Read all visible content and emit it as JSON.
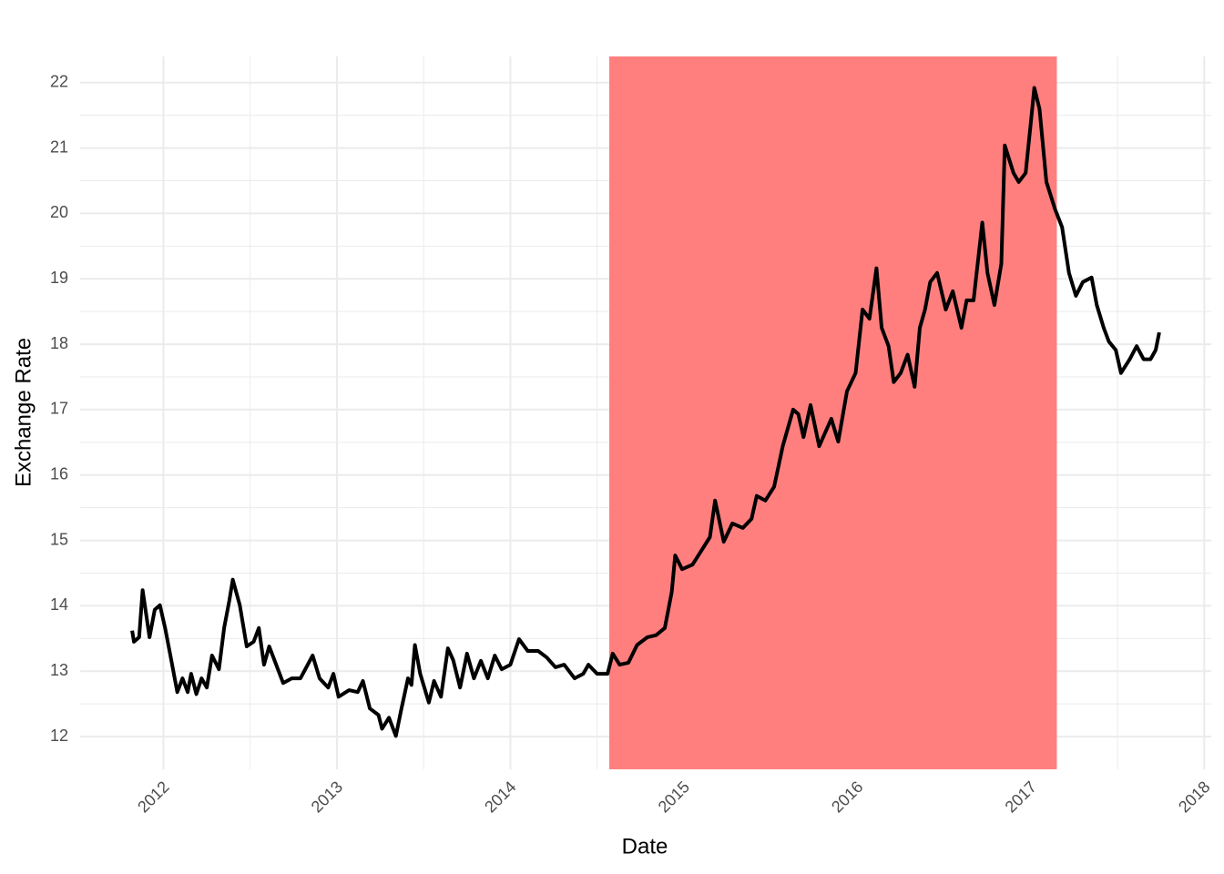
{
  "chart_data": {
    "type": "line",
    "x_label": "Date",
    "y_label": "Exchange Rate",
    "xlim": [
      2011.52,
      2018.04
    ],
    "ylim": [
      11.5,
      22.4
    ],
    "xticks": [
      2012,
      2013,
      2014,
      2015,
      2016,
      2017,
      2018
    ],
    "yticks": [
      12,
      13,
      14,
      15,
      16,
      17,
      18,
      19,
      20,
      21,
      22
    ],
    "grid": true,
    "minor_grid": true,
    "shaded_region": {
      "xmin": 2014.57,
      "xmax": 2017.15,
      "color": "#ff7f7f"
    },
    "series": [
      {
        "color": "#000000",
        "x": [
          2011.82,
          2011.83,
          2011.86,
          2011.88,
          2011.92,
          2011.95,
          2011.98,
          2012.01,
          2012.04,
          2012.06,
          2012.08,
          2012.11,
          2012.14,
          2012.16,
          2012.19,
          2012.22,
          2012.25,
          2012.28,
          2012.32,
          2012.35,
          2012.38,
          2012.4,
          2012.44,
          2012.48,
          2012.52,
          2012.55,
          2012.58,
          2012.61,
          2012.69,
          2012.74,
          2012.79,
          2012.86,
          2012.9,
          2012.95,
          2012.98,
          2013.01,
          2013.07,
          2013.12,
          2013.15,
          2013.19,
          2013.24,
          2013.26,
          2013.3,
          2013.34,
          2013.37,
          2013.41,
          2013.43,
          2013.45,
          2013.48,
          2013.53,
          2013.56,
          2013.6,
          2013.64,
          2013.67,
          2013.71,
          2013.75,
          2013.79,
          2013.83,
          2013.87,
          2013.91,
          2013.95,
          2014.0,
          2014.05,
          2014.1,
          2014.16,
          2014.21,
          2014.26,
          2014.31,
          2014.37,
          2014.42,
          2014.45,
          2014.5,
          2014.56,
          2014.59,
          2014.63,
          2014.68,
          2014.73,
          2014.79,
          2014.84,
          2014.89,
          2014.93,
          2014.95,
          2014.99,
          2015.05,
          2015.1,
          2015.15,
          2015.18,
          2015.23,
          2015.28,
          2015.34,
          2015.39,
          2015.42,
          2015.47,
          2015.52,
          2015.57,
          2015.63,
          2015.66,
          2015.69,
          2015.73,
          2015.78,
          2015.85,
          2015.89,
          2015.94,
          2015.99,
          2016.03,
          2016.07,
          2016.11,
          2016.14,
          2016.18,
          2016.21,
          2016.25,
          2016.29,
          2016.33,
          2016.36,
          2016.39,
          2016.42,
          2016.46,
          2016.51,
          2016.55,
          2016.6,
          2016.63,
          2016.67,
          2016.72,
          2016.75,
          2016.79,
          2016.83,
          2016.85,
          2016.9,
          2016.93,
          2016.97,
          2017.0,
          2017.02,
          2017.05,
          2017.09,
          2017.14,
          2017.18,
          2017.22,
          2017.26,
          2017.3,
          2017.35,
          2017.38,
          2017.42,
          2017.45,
          2017.49,
          2017.52,
          2017.57,
          2017.61,
          2017.65,
          2017.69,
          2017.72,
          2017.74
        ],
        "values": [
          13.62,
          13.45,
          13.52,
          14.24,
          13.52,
          13.94,
          14.01,
          13.66,
          13.24,
          12.96,
          12.68,
          12.89,
          12.68,
          12.96,
          12.65,
          12.89,
          12.75,
          13.24,
          13.03,
          13.66,
          14.08,
          14.4,
          14.01,
          13.38,
          13.45,
          13.66,
          13.1,
          13.38,
          12.82,
          12.89,
          12.89,
          13.24,
          12.89,
          12.75,
          12.96,
          12.61,
          12.71,
          12.68,
          12.85,
          12.43,
          12.33,
          12.12,
          12.29,
          12.01,
          12.4,
          12.89,
          12.79,
          13.4,
          12.96,
          12.52,
          12.85,
          12.61,
          13.35,
          13.17,
          12.75,
          13.27,
          12.89,
          13.16,
          12.89,
          13.24,
          13.03,
          13.1,
          13.49,
          13.31,
          13.31,
          13.21,
          13.06,
          13.1,
          12.89,
          12.96,
          13.1,
          12.96,
          12.96,
          13.27,
          13.1,
          13.13,
          13.4,
          13.52,
          13.55,
          13.66,
          14.21,
          14.77,
          14.56,
          14.63,
          14.84,
          15.05,
          15.61,
          14.98,
          15.26,
          15.19,
          15.33,
          15.68,
          15.61,
          15.82,
          16.44,
          17.0,
          16.93,
          16.58,
          17.07,
          16.44,
          16.86,
          16.51,
          17.28,
          17.56,
          18.53,
          18.39,
          19.16,
          18.25,
          17.97,
          17.42,
          17.56,
          17.84,
          17.35,
          18.25,
          18.53,
          18.95,
          19.09,
          18.53,
          18.81,
          18.25,
          18.67,
          18.67,
          19.86,
          19.09,
          18.6,
          19.23,
          21.04,
          20.62,
          20.48,
          20.62,
          21.39,
          21.92,
          21.6,
          20.48,
          20.06,
          19.79,
          19.09,
          18.74,
          18.95,
          19.02,
          18.6,
          18.25,
          18.04,
          17.91,
          17.56,
          17.77,
          17.97,
          17.77,
          17.77,
          17.91,
          18.18
        ]
      }
    ]
  }
}
